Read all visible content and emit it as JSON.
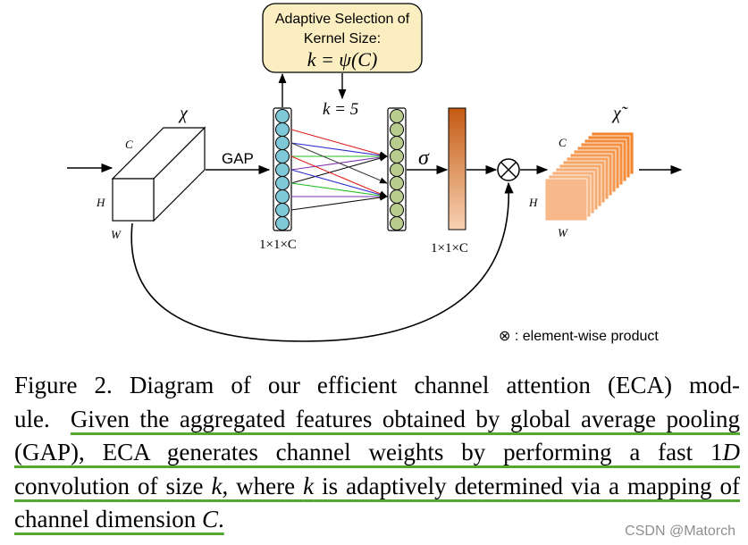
{
  "diagram": {
    "selection_box": {
      "line1": "Adaptive Selection of",
      "line2": "Kernel Size:",
      "formula": "k = ψ(C)"
    },
    "k_value": "k = 5",
    "input_symbol": "χ",
    "output_symbol": "χ̃",
    "gap_label": "GAP",
    "sigma_label": "σ",
    "dim_label_left": "1×1×C",
    "dim_label_right": "1×1×C",
    "axis_c": "C",
    "axis_h": "H",
    "axis_w": "W",
    "legend": "⊗ : element-wise product",
    "colors": {
      "left_nodes": "#7ec8d8",
      "right_nodes": "#b8cc8e",
      "box_fill": "#fbeec0",
      "bar_top": "#c45a12",
      "bar_bottom": "#f5c9a6",
      "cube_front": "#f7b98a",
      "cube_back": "#f2842c"
    }
  },
  "caption": {
    "s1": "Figure 2. Diagram of our efficient channel attention (ECA) mod-",
    "s2": "ule.",
    "s3": "Given the aggregated features obtained by global average pooling (GAP), ECA generates channel weights by performing a fast 1",
    "s4": "D",
    "s5": " convolution of size ",
    "s6": "k",
    "s7": ", where ",
    "s8": "k",
    "s9": " is adaptively determined via a mapping of channel dimension ",
    "s10": "C",
    "s11": "."
  },
  "watermark": "CSDN @Matorch"
}
